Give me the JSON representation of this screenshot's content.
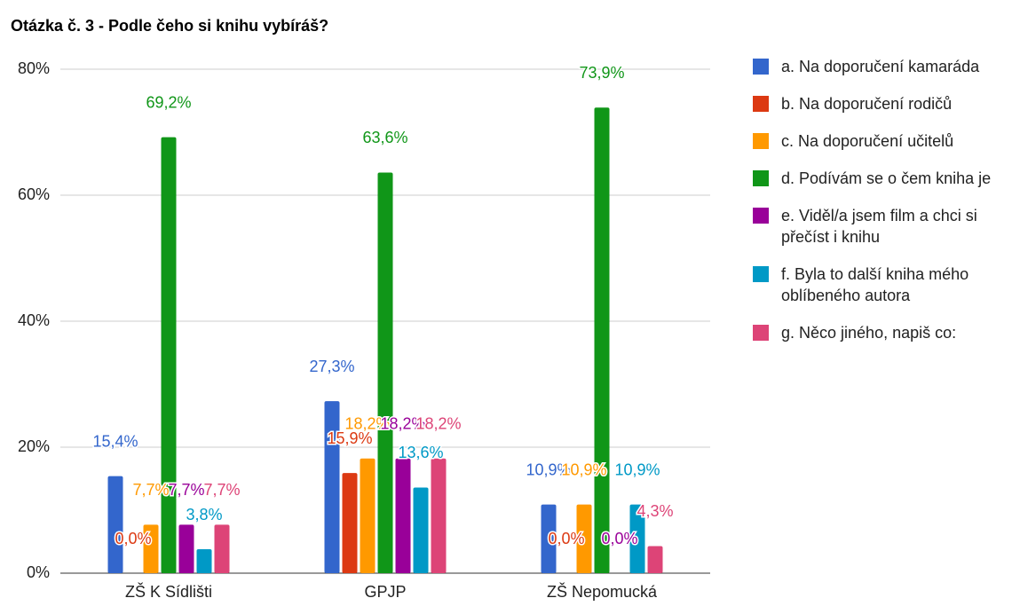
{
  "chart_data": {
    "type": "bar",
    "title": "Otázka č. 3 - Podle čeho si knihu vybíráš?",
    "categories": [
      "ZŠ K Sídlišti",
      "GPJP",
      "ZŠ Nepomucká"
    ],
    "series": [
      {
        "name": "a. Na doporučení kamaráda",
        "color": "#3366cc",
        "values": [
          15.4,
          27.3,
          10.9
        ],
        "value_labels": [
          "15,4%",
          "27,3%",
          "10,9%"
        ]
      },
      {
        "name": "b. Na doporučení rodičů",
        "color": "#dc3912",
        "values": [
          0,
          15.9,
          0
        ],
        "value_labels": [
          "0,0%",
          "15,9%",
          "0,0%"
        ]
      },
      {
        "name": "c. Na doporučení učitelů",
        "color": "#ff9900",
        "values": [
          7.7,
          18.2,
          10.9
        ],
        "value_labels": [
          "7,7%",
          "18,2%",
          "10,9%"
        ]
      },
      {
        "name": "d. Podívám se o čem kniha je",
        "color": "#109618",
        "values": [
          69.2,
          63.6,
          73.9
        ],
        "value_labels": [
          "69,2%",
          "63,6%",
          "73,9%"
        ]
      },
      {
        "name": "e. Viděl/a jsem film a chci si přečíst i knihu",
        "color": "#990099",
        "values": [
          7.7,
          18.2,
          0
        ],
        "value_labels": [
          "7,7%",
          "18,2%",
          "0,0%"
        ]
      },
      {
        "name": "f. Byla to další kniha mého oblíbeného autora",
        "color": "#0099c6",
        "values": [
          3.8,
          13.6,
          10.9
        ],
        "value_labels": [
          "3,8%",
          "13,6%",
          "10,9%"
        ]
      },
      {
        "name": "g. Něco jiného, napiš co:",
        "color": "#dd4477",
        "values": [
          7.7,
          18.2,
          4.3
        ],
        "value_labels": [
          "7,7%",
          "18,2%",
          "4,3%"
        ]
      }
    ],
    "ylim": [
      0,
      80
    ],
    "yticks": [
      {
        "value": 0,
        "label": "0%"
      },
      {
        "value": 20,
        "label": "20%"
      },
      {
        "value": 40,
        "label": "40%"
      },
      {
        "value": 60,
        "label": "60%"
      },
      {
        "value": 80,
        "label": "80%"
      }
    ],
    "grid": true,
    "legend": "right"
  }
}
